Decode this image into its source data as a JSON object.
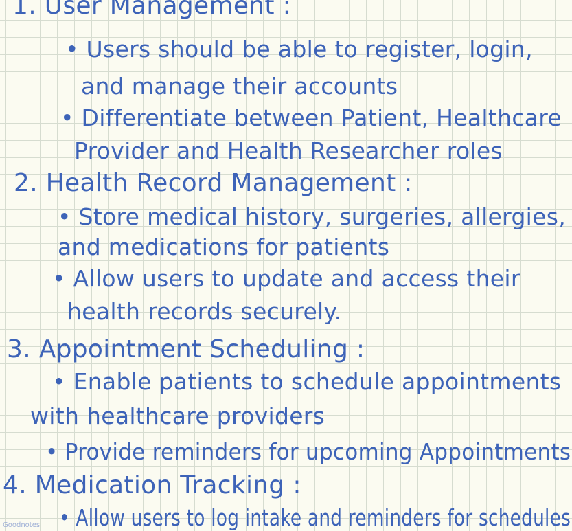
{
  "notes": {
    "sections": [
      {
        "heading": "1. User Management :",
        "bullets": [
          "• Users should be able to register, login,",
          "and manage their accounts",
          "• Differentiate between Patient, Healthcare",
          "Provider and Health Researcher roles"
        ]
      },
      {
        "heading": "2. Health Record Management :",
        "bullets": [
          "• Store medical history, surgeries, allergies,",
          "and medications for patients",
          "• Allow users to update and access their",
          "health records securely."
        ]
      },
      {
        "heading": "3. Appointment Scheduling :",
        "bullets": [
          "• Enable patients to schedule appointments",
          "with healthcare providers",
          "• Provide reminders for upcoming Appointments"
        ]
      },
      {
        "heading": "4. Medication Tracking :",
        "bullets": [
          "• Allow users to log intake and reminders for schedules"
        ]
      }
    ]
  },
  "watermark": "Goodnotes",
  "colors": {
    "ink": "#3d63b8",
    "paper": "#fbfbf1",
    "grid": "#d6dcd0"
  }
}
